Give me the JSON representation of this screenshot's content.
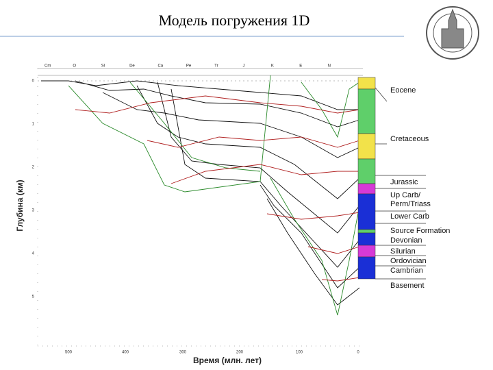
{
  "title": "Модель погружения 1D",
  "chart": {
    "x_axis": {
      "label": "Время (млн. лет)",
      "ticks": [
        "500",
        "400",
        "300",
        "200",
        "100",
        "0"
      ]
    },
    "y_axis": {
      "label": "Глубина (км)",
      "ticks": [
        "0",
        "1",
        "2",
        "3",
        "4",
        "5"
      ]
    },
    "periods": [
      "Cm",
      "O",
      "Sl",
      "De",
      "Ca",
      "Pe",
      "Tr",
      "J",
      "K",
      "E",
      "N"
    ],
    "legend": [
      "Eocene",
      "Cretaceous",
      "Jurassic",
      "Up Carb/",
      "Perm/Triass",
      "Lower Carb",
      "Source Formation",
      "Devonian",
      "Silurian",
      "Ordovician",
      "Cambrian",
      "Basement"
    ]
  }
}
